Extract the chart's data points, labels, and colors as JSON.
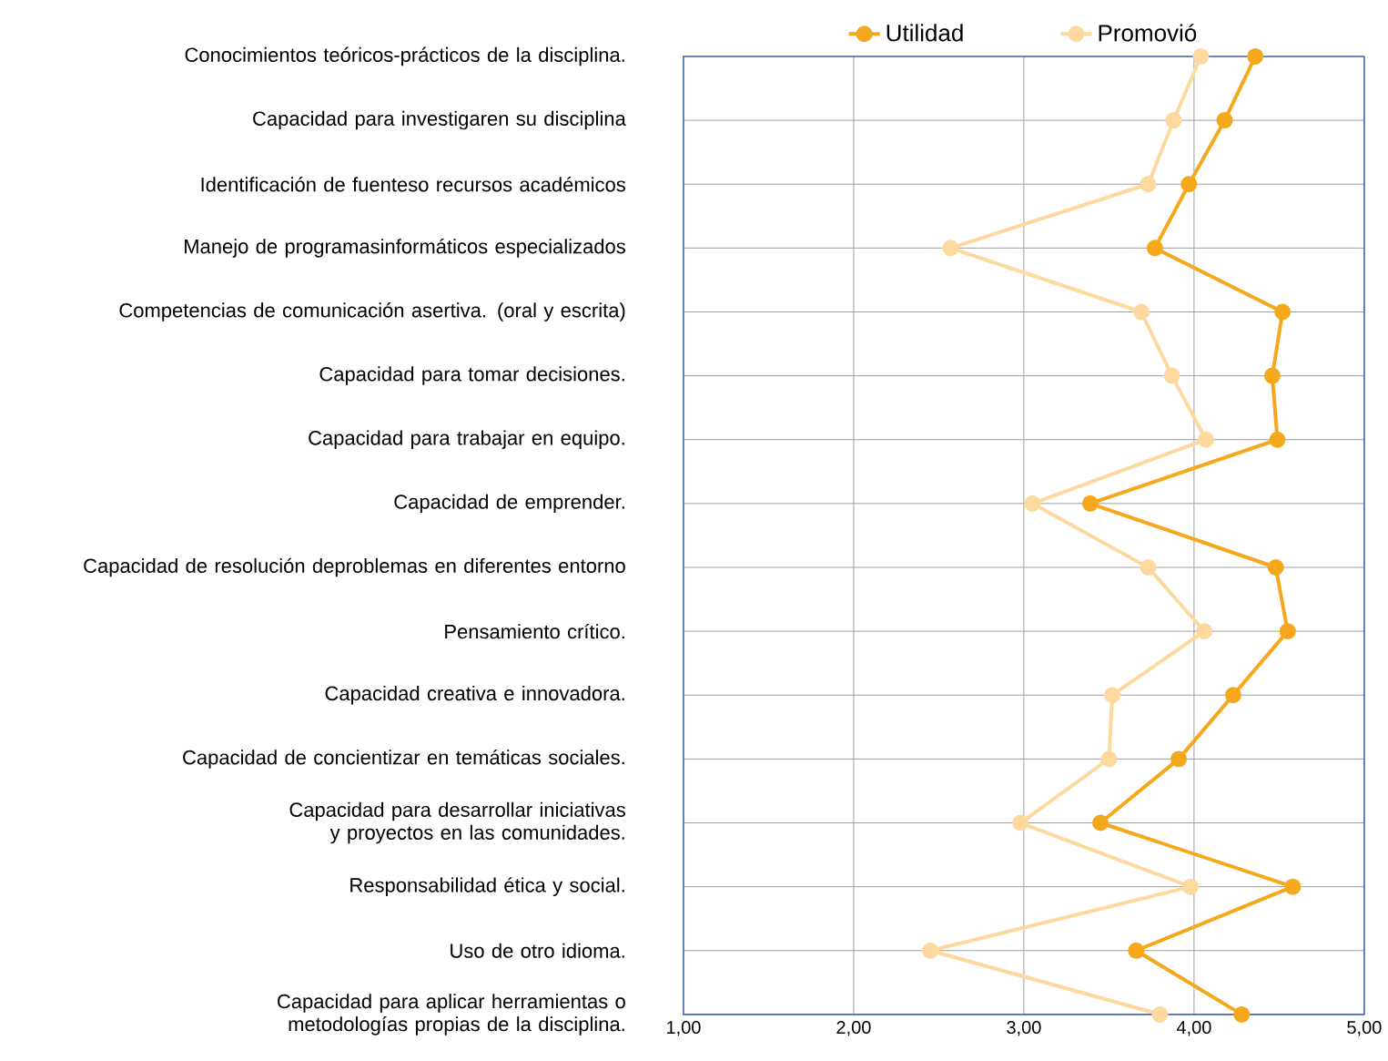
{
  "chart_data": {
    "type": "line",
    "orientation": "horizontal",
    "categories": [
      "Conocimientos teóricos-prácticos de la disciplina.",
      "Capacidad para investigaren su disciplina",
      "Identificación de fuenteso recursos académicos",
      "Manejo de programasinformáticos especializados",
      "Competencias de comunicación asertiva. (oral y escrita)",
      "Capacidad para tomar decisiones.",
      "Capacidad para trabajar en equipo.",
      "Capacidad de emprender.",
      "Capacidad de resolución deproblemas en diferentes entorno",
      "Pensamiento crítico.",
      "Capacidad creativa e innovadora.",
      "Capacidad de concientizar en temáticas sociales.",
      "Capacidad para desarrollar iniciativas y proyectos en las comunidades.",
      "Responsabilidad ética y social.",
      "Uso de otro idioma.",
      "Capacidad para aplicar herramientas o metodologías propias de la disciplina."
    ],
    "series": [
      {
        "name": "Utilidad",
        "color": "#f5a81c",
        "values": [
          4.36,
          4.18,
          3.97,
          3.77,
          4.52,
          4.46,
          4.49,
          3.39,
          4.48,
          4.55,
          4.23,
          3.91,
          3.45,
          4.58,
          3.66,
          4.28
        ]
      },
      {
        "name": "Promovió",
        "color": "#fdd9a0",
        "values": [
          4.04,
          3.88,
          3.73,
          2.57,
          3.69,
          3.87,
          4.07,
          3.05,
          3.73,
          4.06,
          3.52,
          3.5,
          2.98,
          3.98,
          2.45,
          3.8
        ]
      }
    ],
    "xlim": [
      1,
      5
    ],
    "xticks": [
      {
        "value": 1,
        "label": "1,00"
      },
      {
        "value": 2,
        "label": "2,00"
      },
      {
        "value": 3,
        "label": "3,00"
      },
      {
        "value": 4,
        "label": "4,00"
      },
      {
        "value": 5,
        "label": "5,00"
      }
    ],
    "grid": true,
    "legend": "top",
    "marker": "circle",
    "line_style": "solid"
  }
}
